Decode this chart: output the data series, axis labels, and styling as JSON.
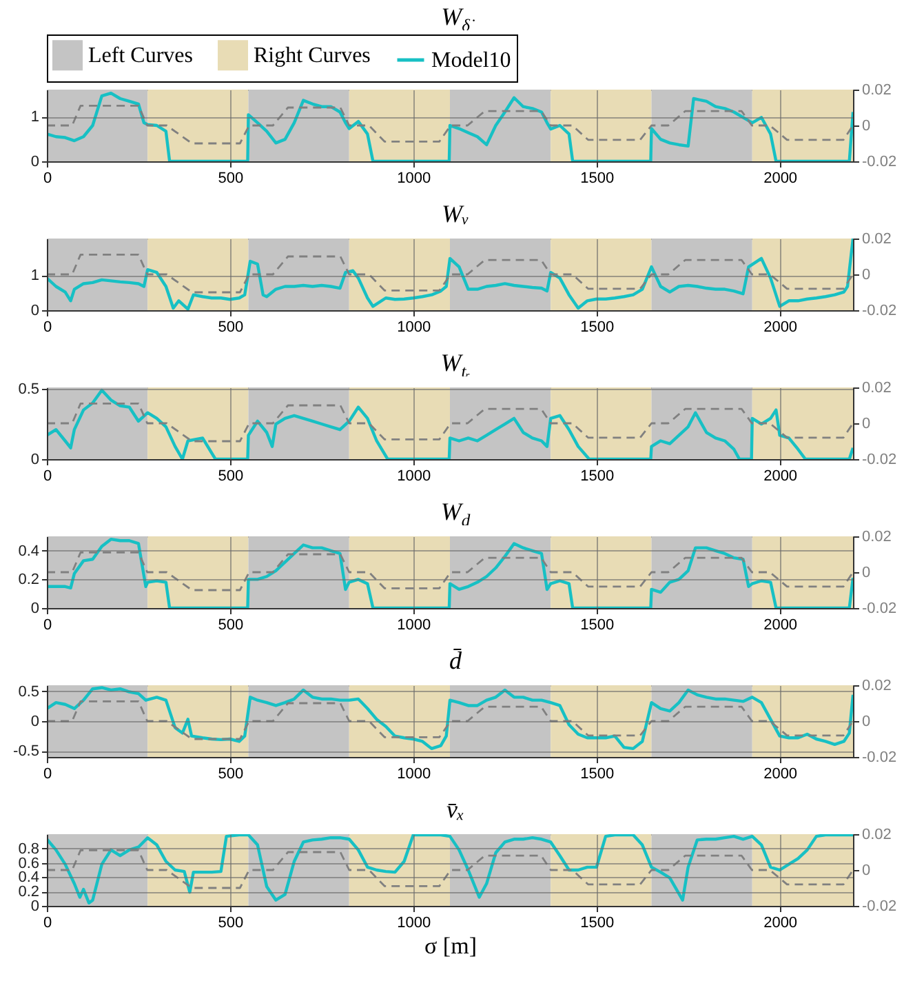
{
  "chart_data": [
    {
      "type": "line",
      "title": "W$_{δ̇}$",
      "legend": "top",
      "grid": true,
      "xlim": [
        0,
        2200
      ],
      "xticks": [
        0,
        500,
        1000,
        1500,
        2000
      ],
      "ylim": [
        0,
        1.6
      ],
      "yticks": [
        0,
        1
      ],
      "y2lim": [
        -0.02,
        0.02
      ],
      "y2ticks": [
        -0.02,
        0,
        0.02
      ],
      "bands": [
        {
          "axis": "x",
          "from": 0,
          "to": 275,
          "label": "Left Curves",
          "color": "#c4c4c4"
        },
        {
          "axis": "x",
          "from": 275,
          "to": 550,
          "label": "Right Curves",
          "color": "#e8dcb5"
        },
        {
          "axis": "x",
          "from": 550,
          "to": 825,
          "color": "#c4c4c4"
        },
        {
          "axis": "x",
          "from": 825,
          "to": 1100,
          "color": "#e8dcb5"
        },
        {
          "axis": "x",
          "from": 1100,
          "to": 1375,
          "color": "#c4c4c4"
        },
        {
          "axis": "x",
          "from": 1375,
          "to": 1650,
          "color": "#e8dcb5"
        },
        {
          "axis": "x",
          "from": 1650,
          "to": 1925,
          "color": "#c4c4c4"
        },
        {
          "axis": "x",
          "from": 1925,
          "to": 2200,
          "color": "#e8dcb5"
        }
      ],
      "series": [
        {
          "name": "Model10",
          "color": "#17c0c4",
          "x": [
            0,
            25,
            50,
            75,
            100,
            125,
            150,
            175,
            200,
            225,
            250,
            265,
            275,
            300,
            325,
            335,
            548,
            550,
            575,
            600,
            625,
            650,
            675,
            700,
            725,
            750,
            775,
            800,
            815,
            825,
            850,
            875,
            890,
            1098,
            1100,
            1125,
            1150,
            1175,
            1200,
            1225,
            1250,
            1275,
            1300,
            1325,
            1350,
            1365,
            1375,
            1400,
            1425,
            1435,
            1648,
            1650,
            1675,
            1700,
            1725,
            1750,
            1765,
            1800,
            1825,
            1850,
            1875,
            1900,
            1925,
            1950,
            1975,
            1990,
            2190,
            2200
          ],
          "values": [
            0.61,
            0.55,
            0.53,
            0.46,
            0.55,
            0.8,
            1.46,
            1.52,
            1.4,
            1.34,
            1.28,
            0.86,
            0.82,
            0.8,
            0.67,
            0,
            0,
            1.04,
            0.86,
            0.67,
            0.41,
            0.49,
            0.86,
            1.36,
            1.28,
            1.22,
            1.22,
            1.1,
            0.86,
            0.73,
            0.89,
            0.61,
            0,
            0,
            0.8,
            0.73,
            0.64,
            0.55,
            0.37,
            0.8,
            1.1,
            1.42,
            1.22,
            1.18,
            1.1,
            0.86,
            0.72,
            0.8,
            0.61,
            0,
            0,
            0.73,
            0.49,
            0.41,
            0.37,
            0.34,
            1.4,
            1.34,
            1.22,
            1.18,
            1.1,
            0.98,
            0.86,
            0.98,
            0.61,
            0,
            0,
            1.1
          ]
        },
        {
          "color": "#808080",
          "axis": "y2",
          "line_style": "dashed",
          "x": [
            0,
            69,
            92,
            250,
            274,
            327,
            396,
            527,
            552,
            617,
            658,
            801,
            825,
            879,
            922,
            1071,
            1102,
            1148,
            1195,
            1349,
            1375,
            1434,
            1477,
            1619,
            1650,
            1696,
            1742,
            1896,
            1924,
            1973,
            2020,
            2174,
            2200
          ],
          "values": [
            0,
            0,
            0.011,
            0.011,
            0,
            0,
            -0.01,
            -0.01,
            0,
            0,
            0.01,
            0.01,
            0,
            0,
            -0.009,
            -0.009,
            0,
            0,
            0.008,
            0.008,
            0,
            0,
            -0.008,
            -0.008,
            0,
            0,
            0.008,
            0.008,
            0,
            0,
            -0.008,
            -0.008,
            0
          ]
        }
      ]
    },
    {
      "type": "line",
      "title": "Wᵥ",
      "grid": true,
      "xlim": [
        0,
        2200
      ],
      "xticks": [
        0,
        500,
        1000,
        1500,
        2000
      ],
      "ylim": [
        0,
        2.05
      ],
      "yticks": [
        0,
        1
      ],
      "y2lim": [
        -0.02,
        0.02
      ],
      "y2ticks": [
        -0.02,
        0,
        0.02
      ],
      "bands": [
        {
          "axis": "x",
          "from": 0,
          "to": 275,
          "color": "#c4c4c4"
        },
        {
          "axis": "x",
          "from": 275,
          "to": 550,
          "color": "#e8dcb5"
        },
        {
          "axis": "x",
          "from": 550,
          "to": 825,
          "color": "#c4c4c4"
        },
        {
          "axis": "x",
          "from": 825,
          "to": 1100,
          "color": "#e8dcb5"
        },
        {
          "axis": "x",
          "from": 1100,
          "to": 1375,
          "color": "#c4c4c4"
        },
        {
          "axis": "x",
          "from": 1375,
          "to": 1650,
          "color": "#e8dcb5"
        },
        {
          "axis": "x",
          "from": 1650,
          "to": 1925,
          "color": "#c4c4c4"
        },
        {
          "axis": "x",
          "from": 1925,
          "to": 2200,
          "color": "#e8dcb5"
        }
      ],
      "series": [
        {
          "color": "#17c0c4",
          "x": [
            0,
            25,
            50,
            65,
            75,
            100,
            125,
            150,
            175,
            200,
            225,
            250,
            265,
            275,
            300,
            325,
            345,
            360,
            385,
            400,
            425,
            450,
            475,
            500,
            525,
            540,
            555,
            575,
            590,
            600,
            625,
            650,
            675,
            700,
            725,
            750,
            775,
            800,
            815,
            835,
            850,
            875,
            890,
            925,
            950,
            975,
            1000,
            1025,
            1050,
            1075,
            1090,
            1100,
            1125,
            1150,
            1175,
            1200,
            1225,
            1250,
            1275,
            1300,
            1325,
            1350,
            1365,
            1375,
            1400,
            1425,
            1450,
            1475,
            1500,
            1525,
            1550,
            1575,
            1600,
            1625,
            1650,
            1675,
            1700,
            1725,
            1750,
            1775,
            1800,
            1825,
            1850,
            1875,
            1900,
            1915,
            1950,
            1975,
            2000,
            2025,
            2050,
            2075,
            2100,
            2125,
            2150,
            2175,
            2185,
            2200
          ],
          "values": [
            0.92,
            0.68,
            0.52,
            0.27,
            0.6,
            0.76,
            0.79,
            0.87,
            0.84,
            0.81,
            0.79,
            0.76,
            0.68,
            1.16,
            1.08,
            0.68,
            0.06,
            0.27,
            0.03,
            0.44,
            0.39,
            0.35,
            0.35,
            0.31,
            0.35,
            0.44,
            1.4,
            1.32,
            0.44,
            0.39,
            0.6,
            0.68,
            0.68,
            0.71,
            0.68,
            0.71,
            0.68,
            0.63,
            1.08,
            1.13,
            0.92,
            0.35,
            0.11,
            0.35,
            0.31,
            0.32,
            0.35,
            0.39,
            0.44,
            0.55,
            0.68,
            1.48,
            1.24,
            0.6,
            0.6,
            0.68,
            0.71,
            0.76,
            0.71,
            0.68,
            0.65,
            0.63,
            0.55,
            1.08,
            0.92,
            0.44,
            0.06,
            0.27,
            0.32,
            0.32,
            0.35,
            0.39,
            0.44,
            0.6,
            1.24,
            0.68,
            0.52,
            0.68,
            0.71,
            0.68,
            0.63,
            0.6,
            0.6,
            0.55,
            0.47,
            1.24,
            1.48,
            0.92,
            0.11,
            0.27,
            0.27,
            0.32,
            0.35,
            0.39,
            0.44,
            0.52,
            0.68,
            2.05
          ]
        },
        {
          "color": "#808080",
          "axis": "y2",
          "line_style": "dashed",
          "x": [
            0,
            69,
            92,
            250,
            274,
            327,
            396,
            527,
            552,
            617,
            658,
            801,
            825,
            879,
            922,
            1071,
            1102,
            1148,
            1195,
            1349,
            1375,
            1434,
            1477,
            1619,
            1650,
            1696,
            1742,
            1896,
            1924,
            1973,
            2020,
            2174,
            2200
          ],
          "values": [
            0,
            0,
            0.011,
            0.011,
            0,
            0,
            -0.01,
            -0.01,
            0,
            0,
            0.01,
            0.01,
            0,
            0,
            -0.009,
            -0.009,
            0,
            0,
            0.008,
            0.008,
            0,
            0,
            -0.008,
            -0.008,
            0,
            0,
            0.008,
            0.008,
            0,
            0,
            -0.008,
            -0.008,
            0
          ]
        }
      ]
    },
    {
      "type": "line",
      "title": "W$_{tᵣ}$",
      "grid": true,
      "xlim": [
        0,
        2200
      ],
      "xticks": [
        0,
        500,
        1000,
        1500,
        2000
      ],
      "ylim": [
        0,
        0.51
      ],
      "yticks": [
        0,
        0.5
      ],
      "y2lim": [
        -0.02,
        0.02
      ],
      "y2ticks": [
        -0.02,
        0,
        0.02
      ],
      "bands": [
        {
          "axis": "x",
          "from": 0,
          "to": 275,
          "color": "#c4c4c4"
        },
        {
          "axis": "x",
          "from": 275,
          "to": 550,
          "color": "#e8dcb5"
        },
        {
          "axis": "x",
          "from": 550,
          "to": 825,
          "color": "#c4c4c4"
        },
        {
          "axis": "x",
          "from": 825,
          "to": 1100,
          "color": "#e8dcb5"
        },
        {
          "axis": "x",
          "from": 1100,
          "to": 1375,
          "color": "#c4c4c4"
        },
        {
          "axis": "x",
          "from": 1375,
          "to": 1650,
          "color": "#e8dcb5"
        },
        {
          "axis": "x",
          "from": 1650,
          "to": 1925,
          "color": "#c4c4c4"
        },
        {
          "axis": "x",
          "from": 1925,
          "to": 2200,
          "color": "#e8dcb5"
        }
      ],
      "series": [
        {
          "color": "#17c0c4",
          "x": [
            0,
            25,
            50,
            65,
            75,
            100,
            125,
            150,
            175,
            200,
            225,
            250,
            275,
            300,
            325,
            350,
            370,
            385,
            425,
            460,
            548,
            550,
            575,
            600,
            615,
            625,
            650,
            675,
            700,
            725,
            750,
            775,
            800,
            825,
            850,
            875,
            900,
            930,
            1098,
            1100,
            1125,
            1150,
            1175,
            1200,
            1225,
            1250,
            1275,
            1300,
            1325,
            1350,
            1365,
            1375,
            1400,
            1425,
            1450,
            1480,
            1648,
            1650,
            1675,
            1700,
            1725,
            1750,
            1770,
            1800,
            1825,
            1850,
            1875,
            1890,
            1923,
            1925,
            1950,
            1975,
            1990,
            2000,
            2025,
            2050,
            2070,
            2190,
            2200
          ],
          "values": [
            0.17,
            0.21,
            0.13,
            0.08,
            0.21,
            0.35,
            0.4,
            0.49,
            0.42,
            0.38,
            0.37,
            0.27,
            0.33,
            0.29,
            0.23,
            0.09,
            0,
            0.13,
            0.15,
            0,
            0,
            0.17,
            0.27,
            0.19,
            0.09,
            0.25,
            0.29,
            0.31,
            0.29,
            0.27,
            0.25,
            0.23,
            0.21,
            0.27,
            0.37,
            0.29,
            0.13,
            0,
            0,
            0.15,
            0.13,
            0.15,
            0.13,
            0.17,
            0.21,
            0.25,
            0.29,
            0.19,
            0.15,
            0.13,
            0.09,
            0.29,
            0.31,
            0.21,
            0.09,
            0,
            0,
            0.09,
            0.13,
            0.11,
            0.17,
            0.23,
            0.33,
            0.19,
            0.15,
            0.13,
            0.07,
            0,
            0,
            0.29,
            0.25,
            0.29,
            0.35,
            0.17,
            0.15,
            0.07,
            0,
            0,
            0.08
          ]
        },
        {
          "color": "#808080",
          "axis": "y2",
          "line_style": "dashed",
          "x": [
            0,
            69,
            92,
            250,
            274,
            327,
            396,
            527,
            552,
            617,
            658,
            801,
            825,
            879,
            922,
            1071,
            1102,
            1148,
            1195,
            1349,
            1375,
            1434,
            1477,
            1619,
            1650,
            1696,
            1742,
            1896,
            1924,
            1973,
            2020,
            2174,
            2200
          ],
          "values": [
            0,
            0,
            0.011,
            0.011,
            0,
            0,
            -0.01,
            -0.01,
            0,
            0,
            0.01,
            0.01,
            0,
            0,
            -0.009,
            -0.009,
            0,
            0,
            0.008,
            0.008,
            0,
            0,
            -0.008,
            -0.008,
            0,
            0,
            0.008,
            0.008,
            0,
            0,
            -0.008,
            -0.008,
            0
          ]
        }
      ]
    },
    {
      "type": "line",
      "title": "W$_{d}$",
      "grid": true,
      "xlim": [
        0,
        2200
      ],
      "xticks": [
        0,
        500,
        1000,
        1500,
        2000
      ],
      "ylim": [
        0,
        0.5
      ],
      "yticks": [
        0,
        0.2,
        0.4
      ],
      "y2lim": [
        -0.02,
        0.02
      ],
      "y2ticks": [
        -0.02,
        0,
        0.02
      ],
      "bands": [
        {
          "axis": "x",
          "from": 0,
          "to": 275,
          "color": "#c4c4c4"
        },
        {
          "axis": "x",
          "from": 275,
          "to": 550,
          "color": "#e8dcb5"
        },
        {
          "axis": "x",
          "from": 550,
          "to": 825,
          "color": "#c4c4c4"
        },
        {
          "axis": "x",
          "from": 825,
          "to": 1100,
          "color": "#e8dcb5"
        },
        {
          "axis": "x",
          "from": 1100,
          "to": 1375,
          "color": "#c4c4c4"
        },
        {
          "axis": "x",
          "from": 1375,
          "to": 1650,
          "color": "#e8dcb5"
        },
        {
          "axis": "x",
          "from": 1650,
          "to": 1925,
          "color": "#c4c4c4"
        },
        {
          "axis": "x",
          "from": 1925,
          "to": 2200,
          "color": "#e8dcb5"
        }
      ],
      "series": [
        {
          "color": "#17c0c4",
          "x": [
            0,
            25,
            50,
            65,
            75,
            100,
            125,
            150,
            175,
            200,
            225,
            250,
            270,
            275,
            300,
            325,
            335,
            548,
            550,
            575,
            600,
            625,
            650,
            675,
            700,
            725,
            750,
            775,
            800,
            815,
            825,
            850,
            875,
            890,
            1098,
            1100,
            1125,
            1150,
            1175,
            1200,
            1225,
            1250,
            1275,
            1300,
            1325,
            1350,
            1365,
            1375,
            1400,
            1425,
            1435,
            1648,
            1650,
            1675,
            1700,
            1725,
            1750,
            1770,
            1800,
            1825,
            1850,
            1875,
            1900,
            1915,
            1925,
            1950,
            1975,
            1990,
            2190,
            2200
          ],
          "values": [
            0.15,
            0.15,
            0.15,
            0.14,
            0.24,
            0.33,
            0.34,
            0.43,
            0.48,
            0.47,
            0.47,
            0.45,
            0.15,
            0.18,
            0.19,
            0.18,
            0,
            0,
            0.2,
            0.2,
            0.22,
            0.26,
            0.32,
            0.38,
            0.44,
            0.42,
            0.42,
            0.4,
            0.38,
            0.13,
            0.18,
            0.2,
            0.17,
            0,
            0,
            0.17,
            0.13,
            0.15,
            0.18,
            0.22,
            0.28,
            0.36,
            0.45,
            0.42,
            0.4,
            0.38,
            0.13,
            0.17,
            0.19,
            0.17,
            0,
            0,
            0.13,
            0.11,
            0.18,
            0.2,
            0.26,
            0.42,
            0.42,
            0.4,
            0.38,
            0.35,
            0.34,
            0.15,
            0.17,
            0.19,
            0.18,
            0,
            0,
            0.21
          ]
        },
        {
          "color": "#808080",
          "axis": "y2",
          "line_style": "dashed",
          "x": [
            0,
            69,
            92,
            250,
            274,
            327,
            396,
            527,
            552,
            617,
            658,
            801,
            825,
            879,
            922,
            1071,
            1102,
            1148,
            1195,
            1349,
            1375,
            1434,
            1477,
            1619,
            1650,
            1696,
            1742,
            1896,
            1924,
            1973,
            2020,
            2174,
            2200
          ],
          "values": [
            0,
            0,
            0.011,
            0.011,
            0,
            0,
            -0.01,
            -0.01,
            0,
            0,
            0.01,
            0.01,
            0,
            0,
            -0.009,
            -0.009,
            0,
            0,
            0.008,
            0.008,
            0,
            0,
            -0.008,
            -0.008,
            0,
            0,
            0.008,
            0.008,
            0,
            0,
            -0.008,
            -0.008,
            0
          ]
        }
      ]
    },
    {
      "type": "line",
      "title": "d̄",
      "grid": true,
      "xlim": [
        0,
        2200
      ],
      "xticks": [
        0,
        500,
        1000,
        1500,
        2000
      ],
      "ylim": [
        -0.6,
        0.6
      ],
      "yticks": [
        -0.5,
        0,
        0.5
      ],
      "y2lim": [
        -0.02,
        0.02
      ],
      "y2ticks": [
        -0.02,
        0,
        0.02
      ],
      "bands": [
        {
          "axis": "x",
          "from": 0,
          "to": 275,
          "color": "#c4c4c4"
        },
        {
          "axis": "x",
          "from": 275,
          "to": 550,
          "color": "#e8dcb5"
        },
        {
          "axis": "x",
          "from": 550,
          "to": 825,
          "color": "#c4c4c4"
        },
        {
          "axis": "x",
          "from": 825,
          "to": 1100,
          "color": "#e8dcb5"
        },
        {
          "axis": "x",
          "from": 1100,
          "to": 1375,
          "color": "#c4c4c4"
        },
        {
          "axis": "x",
          "from": 1375,
          "to": 1650,
          "color": "#e8dcb5"
        },
        {
          "axis": "x",
          "from": 1650,
          "to": 1925,
          "color": "#c4c4c4"
        },
        {
          "axis": "x",
          "from": 1925,
          "to": 2200,
          "color": "#e8dcb5"
        }
      ],
      "series": [
        {
          "color": "#17c0c4",
          "x": [
            0,
            25,
            50,
            75,
            100,
            125,
            150,
            175,
            200,
            225,
            250,
            270,
            300,
            325,
            350,
            370,
            385,
            395,
            425,
            450,
            475,
            500,
            525,
            540,
            555,
            575,
            600,
            625,
            650,
            675,
            700,
            725,
            750,
            775,
            800,
            825,
            850,
            875,
            900,
            925,
            950,
            975,
            1000,
            1025,
            1050,
            1075,
            1090,
            1100,
            1125,
            1150,
            1175,
            1200,
            1225,
            1250,
            1275,
            1300,
            1325,
            1350,
            1375,
            1400,
            1425,
            1450,
            1475,
            1500,
            1525,
            1550,
            1575,
            1600,
            1625,
            1650,
            1675,
            1700,
            1725,
            1750,
            1775,
            1800,
            1825,
            1850,
            1875,
            1900,
            1925,
            1950,
            1975,
            2000,
            2025,
            2050,
            2075,
            2100,
            2125,
            2150,
            2175,
            2190,
            2200
          ],
          "values": [
            0.21,
            0.31,
            0.28,
            0.21,
            0.35,
            0.54,
            0.56,
            0.52,
            0.54,
            0.49,
            0.46,
            0.35,
            0.4,
            0.35,
            -0.11,
            -0.2,
            0.03,
            -0.25,
            -0.28,
            -0.3,
            -0.31,
            -0.3,
            -0.34,
            -0.25,
            0.4,
            0.35,
            0.31,
            0.26,
            0.31,
            0.37,
            0.52,
            0.4,
            0.37,
            0.37,
            0.35,
            0.35,
            0.37,
            0.21,
            0.03,
            -0.09,
            -0.25,
            -0.28,
            -0.3,
            -0.34,
            -0.46,
            -0.41,
            -0.25,
            0.35,
            0.31,
            0.26,
            0.26,
            0.35,
            0.4,
            0.52,
            0.4,
            0.4,
            0.35,
            0.35,
            0.31,
            0.26,
            -0.06,
            -0.22,
            -0.28,
            -0.28,
            -0.28,
            -0.25,
            -0.44,
            -0.46,
            -0.34,
            0.31,
            0.21,
            0.17,
            0.31,
            0.52,
            0.44,
            0.4,
            0.37,
            0.37,
            0.35,
            0.33,
            0.4,
            0.31,
            0.03,
            -0.25,
            -0.28,
            -0.28,
            -0.22,
            -0.3,
            -0.34,
            -0.39,
            -0.34,
            -0.2,
            0.44
          ]
        },
        {
          "color": "#808080",
          "axis": "y2",
          "line_style": "dashed",
          "x": [
            0,
            69,
            92,
            250,
            274,
            327,
            396,
            527,
            552,
            617,
            658,
            801,
            825,
            879,
            922,
            1071,
            1102,
            1148,
            1195,
            1349,
            1375,
            1434,
            1477,
            1619,
            1650,
            1696,
            1742,
            1896,
            1924,
            1973,
            2020,
            2174,
            2200
          ],
          "values": [
            0,
            0,
            0.011,
            0.011,
            0,
            0,
            -0.01,
            -0.01,
            0,
            0,
            0.01,
            0.01,
            0,
            0,
            -0.009,
            -0.009,
            0,
            0,
            0.008,
            0.008,
            0,
            0,
            -0.008,
            -0.008,
            0,
            0,
            0.008,
            0.008,
            0,
            0,
            -0.008,
            -0.008,
            0
          ]
        }
      ]
    },
    {
      "type": "line",
      "title": "v̄ₓ",
      "xlabel": "σ [m]",
      "grid": true,
      "xlim": [
        0,
        2200
      ],
      "xticks": [
        0,
        500,
        1000,
        1500,
        2000
      ],
      "ylim": [
        0,
        1
      ],
      "yticks": [
        0,
        0.2,
        0.4,
        0.6,
        0.8
      ],
      "y2lim": [
        -0.02,
        0.02
      ],
      "y2ticks": [
        -0.02,
        0,
        0.02
      ],
      "bands": [
        {
          "axis": "x",
          "from": 0,
          "to": 275,
          "color": "#c4c4c4"
        },
        {
          "axis": "x",
          "from": 275,
          "to": 550,
          "color": "#e8dcb5"
        },
        {
          "axis": "x",
          "from": 550,
          "to": 825,
          "color": "#c4c4c4"
        },
        {
          "axis": "x",
          "from": 825,
          "to": 1100,
          "color": "#e8dcb5"
        },
        {
          "axis": "x",
          "from": 1100,
          "to": 1375,
          "color": "#c4c4c4"
        },
        {
          "axis": "x",
          "from": 1375,
          "to": 1650,
          "color": "#e8dcb5"
        },
        {
          "axis": "x",
          "from": 1650,
          "to": 1925,
          "color": "#c4c4c4"
        },
        {
          "axis": "x",
          "from": 1925,
          "to": 2200,
          "color": "#e8dcb5"
        }
      ],
      "series": [
        {
          "color": "#17c0c4",
          "x": [
            0,
            25,
            50,
            75,
            90,
            100,
            115,
            125,
            150,
            175,
            200,
            225,
            250,
            275,
            300,
            325,
            350,
            375,
            390,
            400,
            425,
            450,
            475,
            490,
            525,
            550,
            575,
            600,
            625,
            650,
            675,
            700,
            725,
            750,
            775,
            800,
            825,
            850,
            875,
            900,
            925,
            950,
            975,
            1000,
            1025,
            1050,
            1075,
            1100,
            1125,
            1150,
            1180,
            1200,
            1225,
            1250,
            1275,
            1300,
            1325,
            1350,
            1375,
            1400,
            1425,
            1450,
            1475,
            1500,
            1525,
            1550,
            1575,
            1600,
            1625,
            1650,
            1675,
            1700,
            1735,
            1750,
            1775,
            1800,
            1825,
            1850,
            1875,
            1900,
            1925,
            1950,
            1975,
            2000,
            2025,
            2050,
            2075,
            2100,
            2125,
            2150,
            2175,
            2200
          ],
          "values": [
            0.93,
            0.78,
            0.58,
            0.31,
            0.12,
            0.23,
            0.04,
            0.08,
            0.58,
            0.78,
            0.7,
            0.78,
            0.82,
            0.95,
            0.85,
            0.62,
            0.5,
            0.48,
            0.19,
            0.47,
            0.47,
            0.47,
            0.48,
            0.97,
            0.99,
            0.99,
            0.85,
            0.27,
            0.08,
            0.16,
            0.62,
            0.89,
            0.92,
            0.93,
            0.95,
            0.95,
            0.93,
            0.78,
            0.54,
            0.5,
            0.48,
            0.47,
            0.62,
            0.99,
            0.99,
            0.99,
            0.99,
            0.97,
            0.78,
            0.5,
            0.12,
            0.31,
            0.74,
            0.89,
            0.93,
            0.93,
            0.95,
            0.93,
            0.89,
            0.7,
            0.5,
            0.5,
            0.54,
            0.54,
            0.97,
            0.99,
            0.99,
            0.99,
            0.85,
            0.54,
            0.47,
            0.39,
            0.08,
            0.54,
            0.92,
            0.93,
            0.93,
            0.95,
            0.97,
            0.93,
            0.97,
            0.85,
            0.54,
            0.5,
            0.58,
            0.66,
            0.78,
            0.97,
            0.99,
            0.99,
            0.99,
            0.99
          ]
        },
        {
          "color": "#808080",
          "axis": "y2",
          "line_style": "dashed",
          "x": [
            0,
            69,
            92,
            250,
            274,
            327,
            396,
            527,
            552,
            617,
            658,
            801,
            825,
            879,
            922,
            1071,
            1102,
            1148,
            1195,
            1349,
            1375,
            1434,
            1477,
            1619,
            1650,
            1696,
            1742,
            1896,
            1924,
            1973,
            2020,
            2174,
            2200
          ],
          "values": [
            0,
            0,
            0.011,
            0.011,
            0,
            0,
            -0.01,
            -0.01,
            0,
            0,
            0.01,
            0.01,
            0,
            0,
            -0.009,
            -0.009,
            0,
            0,
            0.008,
            0.008,
            0,
            0,
            -0.008,
            -0.008,
            0,
            0,
            0.008,
            0.008,
            0,
            0,
            -0.008,
            -0.008,
            0
          ]
        }
      ]
    }
  ]
}
